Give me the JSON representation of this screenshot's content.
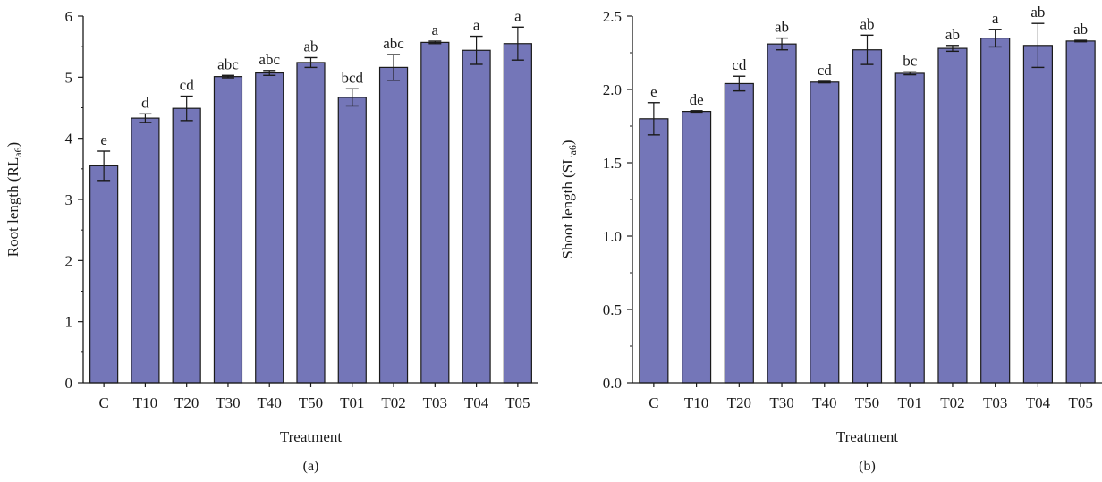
{
  "colors": {
    "bar_fill": "#7476b8",
    "bar_stroke": "#1a1a1a",
    "axis": "#1a1a1a"
  },
  "chart_data": [
    {
      "type": "bar",
      "panel_label": "(a)",
      "xlabel": "Treatment",
      "ylabel_main": "Root length (RL",
      "ylabel_sub": "a6",
      "ylabel_close": ")",
      "ylim": [
        0,
        6
      ],
      "yticks": [
        "0",
        "1",
        "2",
        "3",
        "4",
        "5",
        "6"
      ],
      "grid": false,
      "categories": [
        "C",
        "T10",
        "T20",
        "T30",
        "T40",
        "T50",
        "T01",
        "T02",
        "T03",
        "T04",
        "T05"
      ],
      "values": [
        3.55,
        4.33,
        4.49,
        5.01,
        5.07,
        5.24,
        4.67,
        5.16,
        5.57,
        5.44,
        5.55
      ],
      "errors": [
        0.24,
        0.07,
        0.2,
        0.02,
        0.04,
        0.08,
        0.14,
        0.21,
        0.02,
        0.23,
        0.27
      ],
      "letters": [
        "e",
        "d",
        "cd",
        "abc",
        "abc",
        "ab",
        "bcd",
        "abc",
        "a",
        "a",
        "a"
      ]
    },
    {
      "type": "bar",
      "panel_label": "(b)",
      "xlabel": "Treatment",
      "ylabel_main": "Shoot length (SL",
      "ylabel_sub": "a6",
      "ylabel_close": ")",
      "ylim": [
        0,
        2.5
      ],
      "yticks": [
        "0.0",
        "0.5",
        "1.0",
        "1.5",
        "2.0",
        "2.5"
      ],
      "grid": false,
      "categories": [
        "C",
        "T10",
        "T20",
        "T30",
        "T40",
        "T50",
        "T01",
        "T02",
        "T03",
        "T04",
        "T05"
      ],
      "values": [
        1.8,
        1.85,
        2.04,
        2.31,
        2.05,
        2.27,
        2.11,
        2.28,
        2.35,
        2.3,
        2.33
      ],
      "errors": [
        0.11,
        0.005,
        0.05,
        0.04,
        0.005,
        0.1,
        0.01,
        0.02,
        0.06,
        0.15,
        0.005
      ],
      "letters": [
        "e",
        "de",
        "cd",
        "ab",
        "cd",
        "ab",
        "bc",
        "ab",
        "a",
        "ab",
        "ab"
      ]
    }
  ]
}
